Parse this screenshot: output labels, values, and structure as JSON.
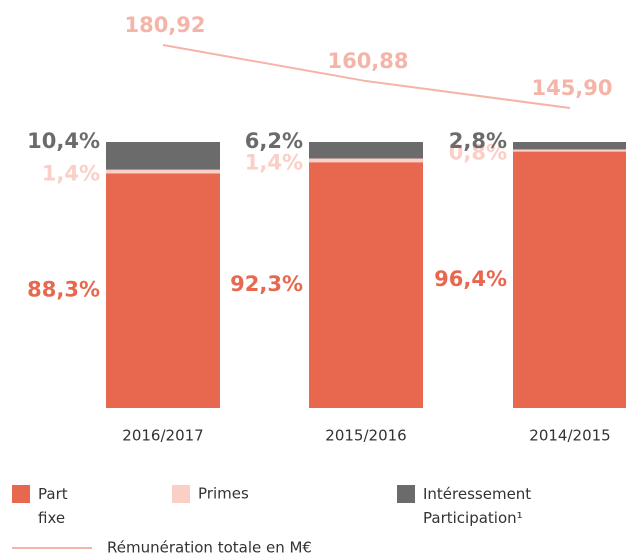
{
  "chart_data": {
    "type": "stacked_bar_line",
    "categories": [
      "2016/2017",
      "2015/2016",
      "2014/2015"
    ],
    "series": [
      {
        "name": "Part fixe",
        "color": "#e8674f",
        "values": [
          88.3,
          92.3,
          96.4
        ],
        "value_labels": [
          "88,3%",
          "92,3%",
          "96,4%"
        ]
      },
      {
        "name": "Primes",
        "color": "#f9cfc6",
        "values": [
          1.4,
          1.4,
          0.8
        ],
        "value_labels": [
          "1,4%",
          "1,4%",
          "0,8%"
        ]
      },
      {
        "name": "Intéressement Participation¹",
        "color": "#6b6b6b",
        "values": [
          10.4,
          6.2,
          2.8
        ],
        "value_labels": [
          "10,4%",
          "6,2%",
          "2,8%"
        ]
      }
    ],
    "line": {
      "name": "Rémunération totale en M€",
      "color": "#f4b4a8",
      "values": [
        180.92,
        160.88,
        145.9
      ],
      "value_labels": [
        "180,92",
        "160,88",
        "145,90"
      ]
    }
  }
}
